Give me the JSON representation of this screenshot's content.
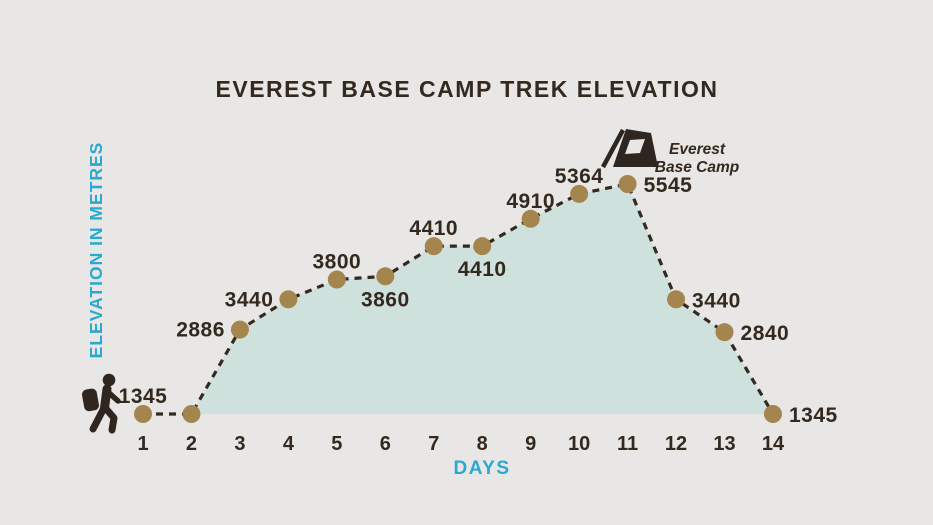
{
  "title": "EVEREST BASE CAMP TREK ELEVATION",
  "axes": {
    "x_label": "DAYS",
    "y_label": "ELEVATION IN METRES"
  },
  "annotations": {
    "base_camp_line1": "Everest",
    "base_camp_line2": "Base Camp"
  },
  "icons": {
    "hiker": "hiker-icon",
    "tent": "tent-icon"
  },
  "colors": {
    "background": "#e8e7e5",
    "area_fill": "#cfe1dd",
    "line": "#33291f",
    "dot": "#a5854e",
    "accent": "#29a9d0",
    "text": "#33291f"
  },
  "chart_data": {
    "type": "line",
    "title": "EVEREST BASE CAMP TREK ELEVATION",
    "xlabel": "DAYS",
    "ylabel": "ELEVATION IN METRES",
    "x": [
      1,
      2,
      3,
      4,
      5,
      6,
      7,
      8,
      9,
      10,
      11,
      12,
      13,
      14
    ],
    "values": [
      1345,
      1345,
      2886,
      3440,
      3800,
      3860,
      4410,
      4410,
      4910,
      5364,
      5545,
      3440,
      2840,
      1345
    ],
    "point_labels": [
      "1345",
      "",
      "2886",
      "3440",
      "3800",
      "3860",
      "4410",
      "4410",
      "4910",
      "5364",
      "5545",
      "3440",
      "2840",
      "1345"
    ],
    "label_placement": [
      "above",
      "none",
      "left",
      "left",
      "above",
      "below",
      "above",
      "below",
      "above",
      "above",
      "right",
      "right",
      "right",
      "right"
    ],
    "line_style": "dashed",
    "area_fill_from_day": 2,
    "ylim": [
      1345,
      5545
    ],
    "grid": false,
    "legend": false
  }
}
